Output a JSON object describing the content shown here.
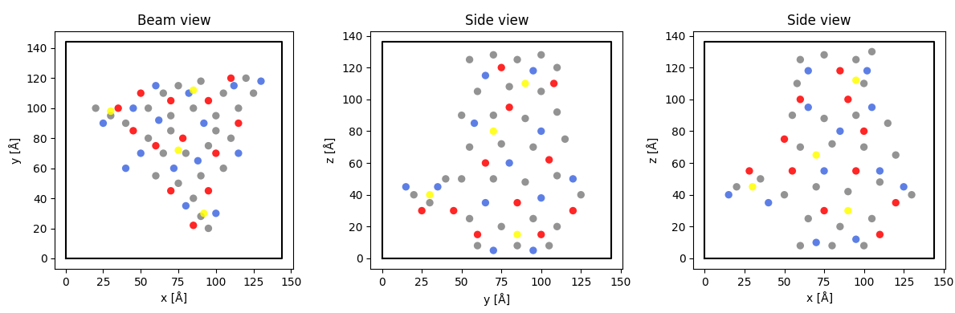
{
  "chart_data": [
    {
      "type": "scatter",
      "title": "Beam view",
      "x_label": "x [Å]",
      "y_label": "y [Å]",
      "xlim": [
        -7.2,
        151.2
      ],
      "ylim": [
        -7.2,
        151.2
      ],
      "xticks": [
        0,
        25,
        50,
        75,
        100,
        125,
        150
      ],
      "yticks": [
        0,
        20,
        40,
        60,
        80,
        100,
        120,
        140
      ],
      "grid": false,
      "series": [
        {
          "type": "line",
          "color": "#000000",
          "x": [
            0,
            144,
            144,
            0,
            0
          ],
          "y": [
            0,
            0,
            144,
            144,
            0
          ]
        },
        {
          "type": "scatter",
          "color": "#808080",
          "x": [
            30,
            20,
            40,
            55,
            65,
            75,
            90,
            105,
            120,
            125,
            115,
            100,
            85,
            70,
            55,
            65,
            80,
            95,
            110,
            60,
            75,
            90,
            105,
            85,
            90,
            95,
            70,
            100
          ],
          "y": [
            95,
            100,
            90,
            100,
            110,
            115,
            118,
            110,
            120,
            110,
            100,
            95,
            100,
            95,
            80,
            70,
            70,
            75,
            80,
            55,
            50,
            55,
            60,
            40,
            28,
            20,
            85,
            85
          ]
        },
        {
          "type": "scatter",
          "color": "#4169e1",
          "x": [
            25,
            45,
            60,
            82,
            112,
            130,
            50,
            72,
            88,
            115,
            80,
            100,
            62,
            92,
            40
          ],
          "y": [
            90,
            100,
            115,
            110,
            115,
            118,
            70,
            60,
            65,
            70,
            35,
            30,
            92,
            90,
            60
          ]
        },
        {
          "type": "scatter",
          "color": "#ff0000",
          "x": [
            35,
            50,
            70,
            95,
            110,
            60,
            78,
            100,
            70,
            95,
            85,
            115,
            45
          ],
          "y": [
            100,
            110,
            105,
            105,
            120,
            75,
            80,
            70,
            45,
            45,
            22,
            90,
            85
          ]
        },
        {
          "type": "scatter",
          "color": "#ffff00",
          "x": [
            30,
            85,
            75,
            92
          ],
          "y": [
            98,
            112,
            72,
            30
          ]
        }
      ]
    },
    {
      "type": "scatter",
      "title": "Side view",
      "x_label": "y [Å]",
      "y_label": "z [Å]",
      "xlim": [
        -7.2,
        151.2
      ],
      "ylim": [
        -6.8,
        142.8
      ],
      "xticks": [
        0,
        25,
        50,
        75,
        100,
        125,
        150
      ],
      "yticks": [
        0,
        20,
        40,
        60,
        80,
        100,
        120,
        140
      ],
      "grid": false,
      "series": [
        {
          "type": "line",
          "color": "#000000",
          "x": [
            0,
            144,
            144,
            0,
            0
          ],
          "y": [
            0,
            0,
            136,
            136,
            0
          ]
        },
        {
          "type": "scatter",
          "color": "#808080",
          "x": [
            55,
            70,
            85,
            100,
            110,
            60,
            80,
            100,
            50,
            70,
            90,
            110,
            55,
            75,
            95,
            115,
            50,
            70,
            90,
            110,
            125,
            20,
            30,
            40,
            55,
            75,
            95,
            110,
            60,
            85,
            105
          ],
          "y": [
            125,
            128,
            125,
            128,
            120,
            105,
            108,
            105,
            90,
            90,
            88,
            92,
            70,
            72,
            70,
            75,
            50,
            50,
            48,
            52,
            40,
            40,
            35,
            50,
            25,
            20,
            25,
            20,
            8,
            8,
            8
          ]
        },
        {
          "type": "scatter",
          "color": "#4169e1",
          "x": [
            65,
            95,
            58,
            100,
            15,
            35,
            120,
            65,
            100,
            80,
            70,
            95
          ],
          "y": [
            115,
            118,
            85,
            80,
            45,
            45,
            50,
            35,
            38,
            60,
            5,
            5
          ]
        },
        {
          "type": "scatter",
          "color": "#ff0000",
          "x": [
            75,
            108,
            80,
            65,
            105,
            25,
            45,
            85,
            120,
            60,
            100
          ],
          "y": [
            120,
            110,
            95,
            60,
            62,
            30,
            30,
            35,
            30,
            15,
            15
          ]
        },
        {
          "type": "scatter",
          "color": "#ffff00",
          "x": [
            90,
            70,
            30,
            85
          ],
          "y": [
            110,
            80,
            40,
            15
          ]
        }
      ]
    },
    {
      "type": "scatter",
      "title": "Side view",
      "x_label": "x [Å]",
      "y_label": "z [Å]",
      "xlim": [
        -7.2,
        151.2
      ],
      "ylim": [
        -6.8,
        142.8
      ],
      "xticks": [
        0,
        25,
        50,
        75,
        100,
        125,
        150
      ],
      "yticks": [
        0,
        20,
        40,
        60,
        80,
        100,
        120,
        140
      ],
      "grid": false,
      "series": [
        {
          "type": "line",
          "color": "#000000",
          "x": [
            0,
            144,
            144,
            0,
            0
          ],
          "y": [
            0,
            0,
            136,
            136,
            0
          ]
        },
        {
          "type": "scatter",
          "color": "#808080",
          "x": [
            60,
            75,
            95,
            105,
            58,
            100,
            55,
            75,
            95,
            115,
            60,
            80,
            100,
            120,
            20,
            35,
            50,
            70,
            90,
            110,
            130,
            65,
            85,
            105,
            60,
            80,
            100
          ],
          "y": [
            125,
            128,
            125,
            130,
            110,
            110,
            90,
            88,
            90,
            85,
            70,
            72,
            70,
            65,
            45,
            50,
            40,
            45,
            42,
            48,
            40,
            25,
            20,
            25,
            8,
            8,
            8
          ]
        },
        {
          "type": "scatter",
          "color": "#4169e1",
          "x": [
            65,
            102,
            65,
            105,
            15,
            40,
            75,
            110,
            125,
            70,
            95,
            85
          ],
          "y": [
            118,
            118,
            95,
            95,
            40,
            35,
            55,
            55,
            45,
            10,
            12,
            80
          ]
        },
        {
          "type": "scatter",
          "color": "#ff0000",
          "x": [
            85,
            60,
            90,
            50,
            100,
            28,
            55,
            95,
            120,
            75,
            110
          ],
          "y": [
            118,
            100,
            100,
            75,
            80,
            55,
            55,
            55,
            35,
            30,
            15
          ]
        },
        {
          "type": "scatter",
          "color": "#ffff00",
          "x": [
            95,
            70,
            30,
            90
          ],
          "y": [
            112,
            65,
            45,
            30
          ]
        }
      ]
    }
  ]
}
